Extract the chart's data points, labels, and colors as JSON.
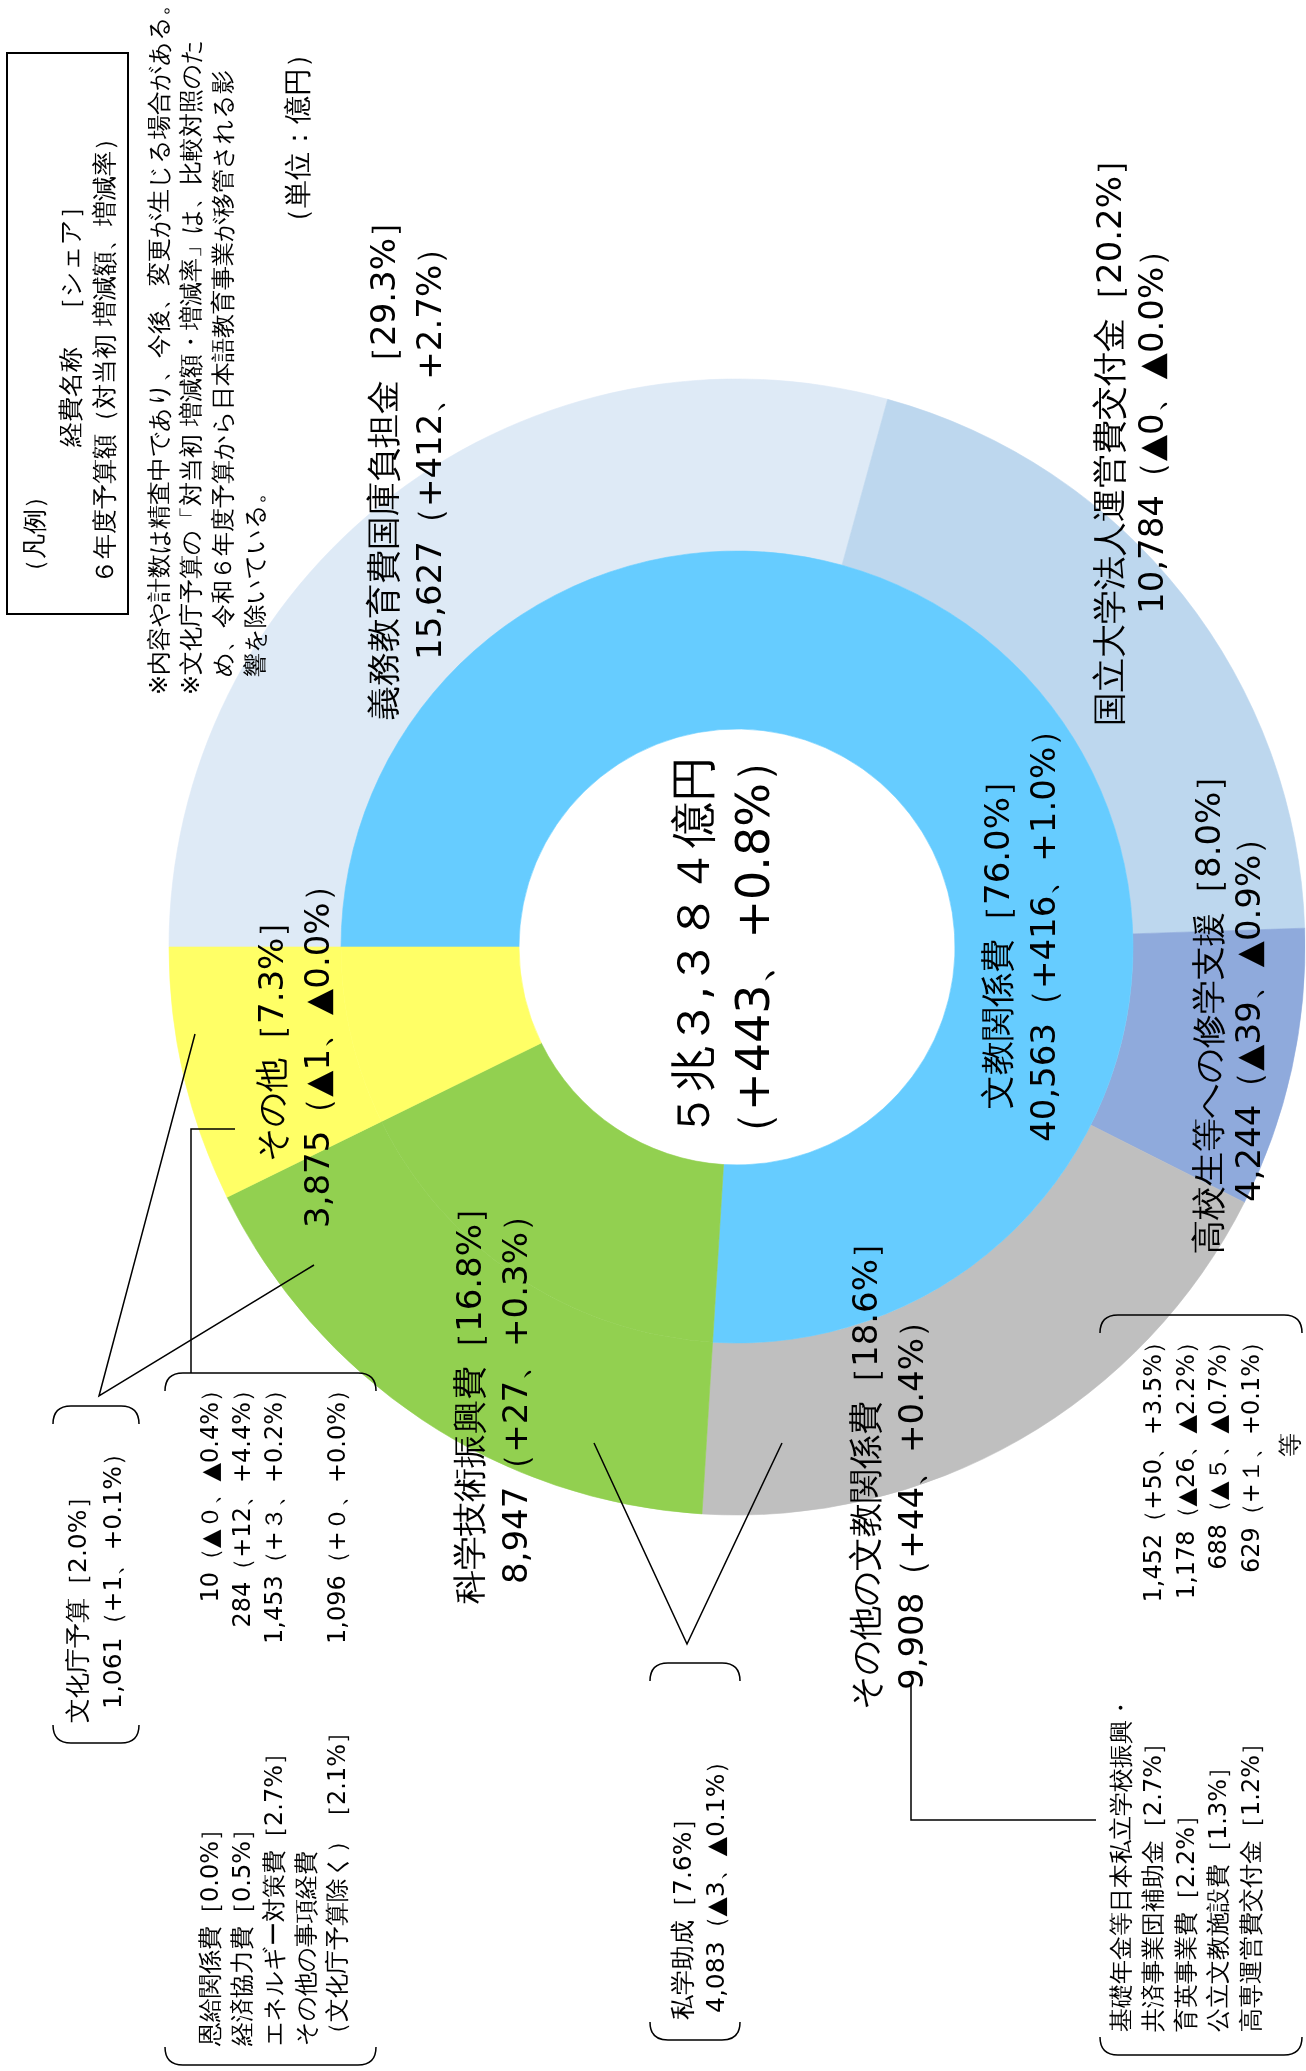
{
  "chart_data": [
    {
      "type": "donut",
      "categories": [
        "文教関係費［76.0%］",
        "科学技術振興費［16.8%］",
        "その他［7.3%］"
      ],
      "values": [
        40563,
        8947,
        3875
      ],
      "colors": [
        "#66ccff",
        "#92d050",
        "#ffff66"
      ],
      "value_labels": [
        "40,563（+416、+1.0%）",
        "8,947（+27、+0.3%）",
        "3,875（▲1、▲0.0%）"
      ],
      "annotations": [
        "５兆３,３８４億円",
        "（+443、+0.8%）",
        "（凡例）",
        "経費名称　［シェア］",
        "６年度予算額（対当初 増減額、増減率）",
        "※内容や計数は精査中であり、今後、変更が生じる場合がある。",
        "※文化庁予算の「対当初 増減額・増減率」は、比較対照のた",
        "め、令和６年度予算から日本語教育事業が移管される影",
        "響を除いている。",
        "（単位：億円）",
        "文化庁予算［2.0%］",
        "1,061（+1、+0.1%）",
        "恩給関係費［0.0%］",
        "10（▲０、▲0.4%）",
        "経済協力費［0.5%］",
        "284（+12、+4.4%）",
        "エネルギー対策費［2.7%］",
        "1,453（+３、+0.2%）",
        "その他の事項経費",
        "（文化庁予算除く）［2.1%］",
        "1,096（+０、+0.0%）",
        "私学助成［7.6%］",
        "4,083（▲3、▲0.1%）",
        "基礎年金等日本私立学校振興・",
        "共済事業団補助金［2.7%］",
        "育英事業費［2.2%］",
        "公立文教施設費［1.3%］",
        "高専運営費交付金［1.2%］",
        "1,452（+50、+3.5%）",
        "1,178（▲26、▲2.2%）",
        "688（▲５、▲0.7%）",
        "629（+１、+0.1%）",
        "等"
      ]
    },
    {
      "type": "donut",
      "categories": [
        "義務教育費国庫負担金［29.3%］",
        "国立大学法人運営費交付金［20.2%］",
        "高校生等への修学支援［8.0%］",
        "その他の文教関係費［18.6%］",
        null,
        null
      ],
      "values": [
        15627,
        10784,
        4244,
        9908,
        8947,
        3875
      ],
      "colors": [
        "#deeaf6",
        "#bdd7ee",
        "#8faadc",
        "#bfbfbf",
        "#92d050",
        "#ffff66"
      ],
      "value_labels": [
        "15,627（+412、+2.7%）",
        "10,784（▲0、▲0.0%）",
        "4,244（▲39、▲0.9%）",
        "9,908（+44、+0.4%）",
        null,
        null
      ]
    }
  ]
}
